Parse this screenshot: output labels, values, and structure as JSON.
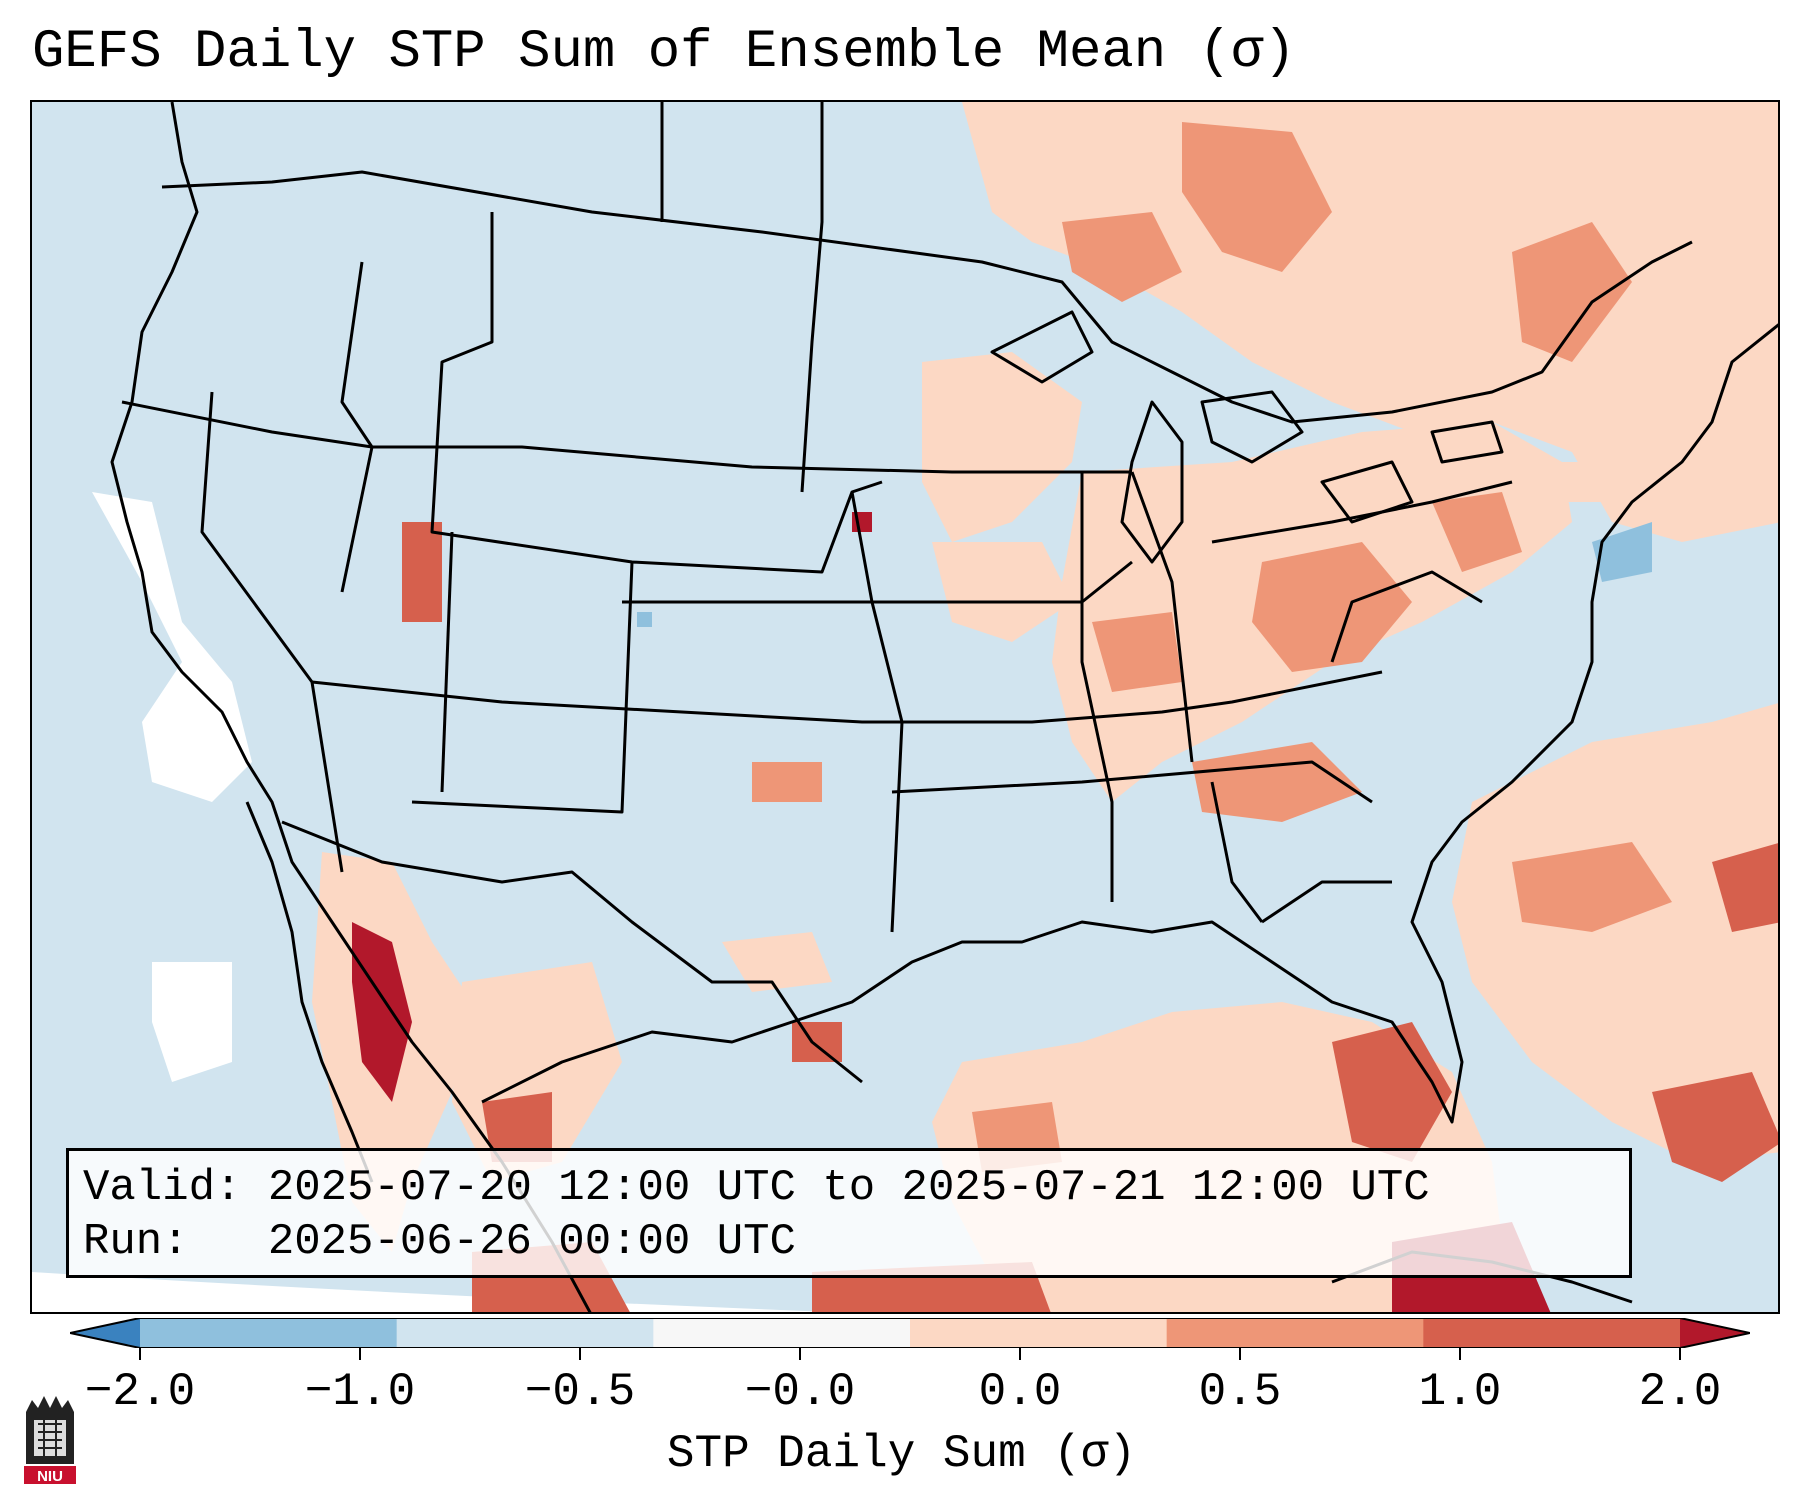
{
  "title": "GEFS Daily STP Sum of Ensemble Mean (σ)",
  "info": {
    "valid_label": "Valid:",
    "valid_value": "2025-07-20 12:00 UTC to 2025-07-21 12:00 UTC",
    "run_label": "Run:",
    "run_value": "2025-06-26 00:00 UTC"
  },
  "colorbar": {
    "label": "STP Daily Sum (σ)",
    "ticks": [
      "−2.0",
      "−1.0",
      "−0.5",
      "−0.0",
      "0.0",
      "0.5",
      "1.0",
      "2.0"
    ],
    "colors": [
      "#3a82bf",
      "#8fc0dd",
      "#d1e4ef",
      "#f7f7f7",
      "#fcd8c4",
      "#ee9677",
      "#d6604d",
      "#b2182b"
    ],
    "extend": "both"
  },
  "map": {
    "projection": "Lambert Conformal",
    "region": "Contiguous United States"
  },
  "logo_text": "NIU"
}
